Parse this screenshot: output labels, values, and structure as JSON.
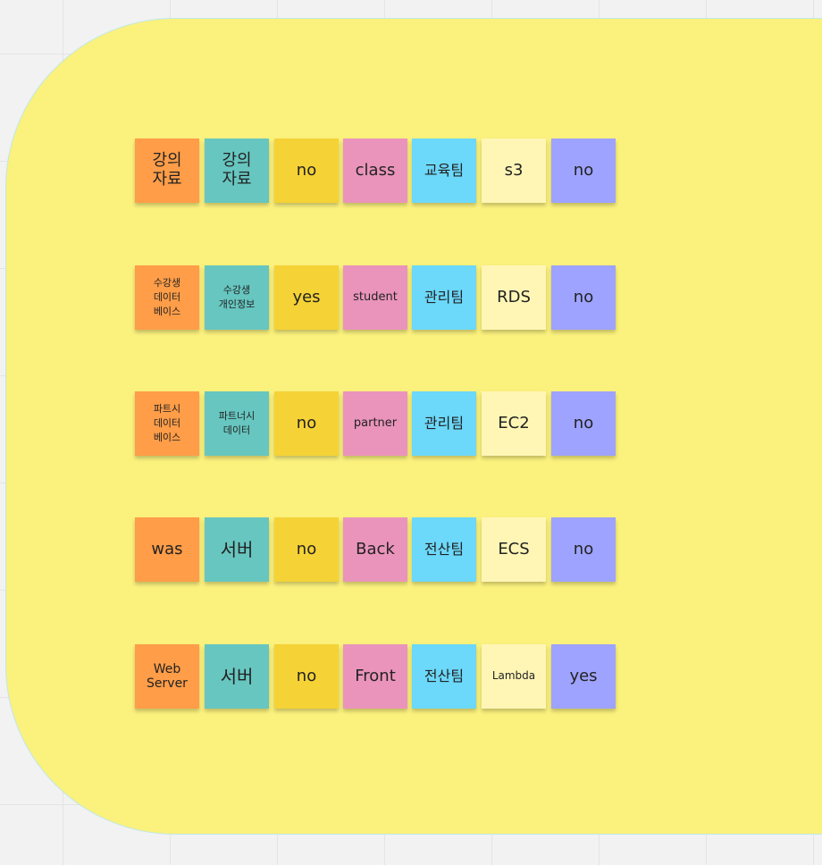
{
  "colors": {
    "orange": "#ff9d48",
    "teal": "#67c6c0",
    "yellow": "#f5d236",
    "pink": "#ea94bb",
    "cyan": "#6cd8fa",
    "pale": "#fff6b6",
    "violet": "#9ea3ff",
    "frame": "#fbf17d",
    "canvas": "#f2f2f2"
  },
  "rows": [
    {
      "asset": "강의\n자료",
      "category": "강의\n자료",
      "personal_info": "no",
      "name": "class",
      "owner": "교육팀",
      "service": "s3",
      "public": "no"
    },
    {
      "asset": "수강생\n데이터\n베이스",
      "category": "수강생\n개인정보",
      "personal_info": "yes",
      "name": "student",
      "owner": "관리팀",
      "service": "RDS",
      "public": "no"
    },
    {
      "asset": "파트시\n데이터\n베이스",
      "category": "파트너시\n데이터",
      "personal_info": "no",
      "name": "partner",
      "owner": "관리팀",
      "service": "EC2",
      "public": "no"
    },
    {
      "asset": "was",
      "category": "서버",
      "personal_info": "no",
      "name": "Back",
      "owner": "전산팀",
      "service": "ECS",
      "public": "no"
    },
    {
      "asset": "Web\nServer",
      "category": "서버",
      "personal_info": "no",
      "name": "Front",
      "owner": "전산팀",
      "service": "Lambda",
      "public": "yes"
    }
  ]
}
